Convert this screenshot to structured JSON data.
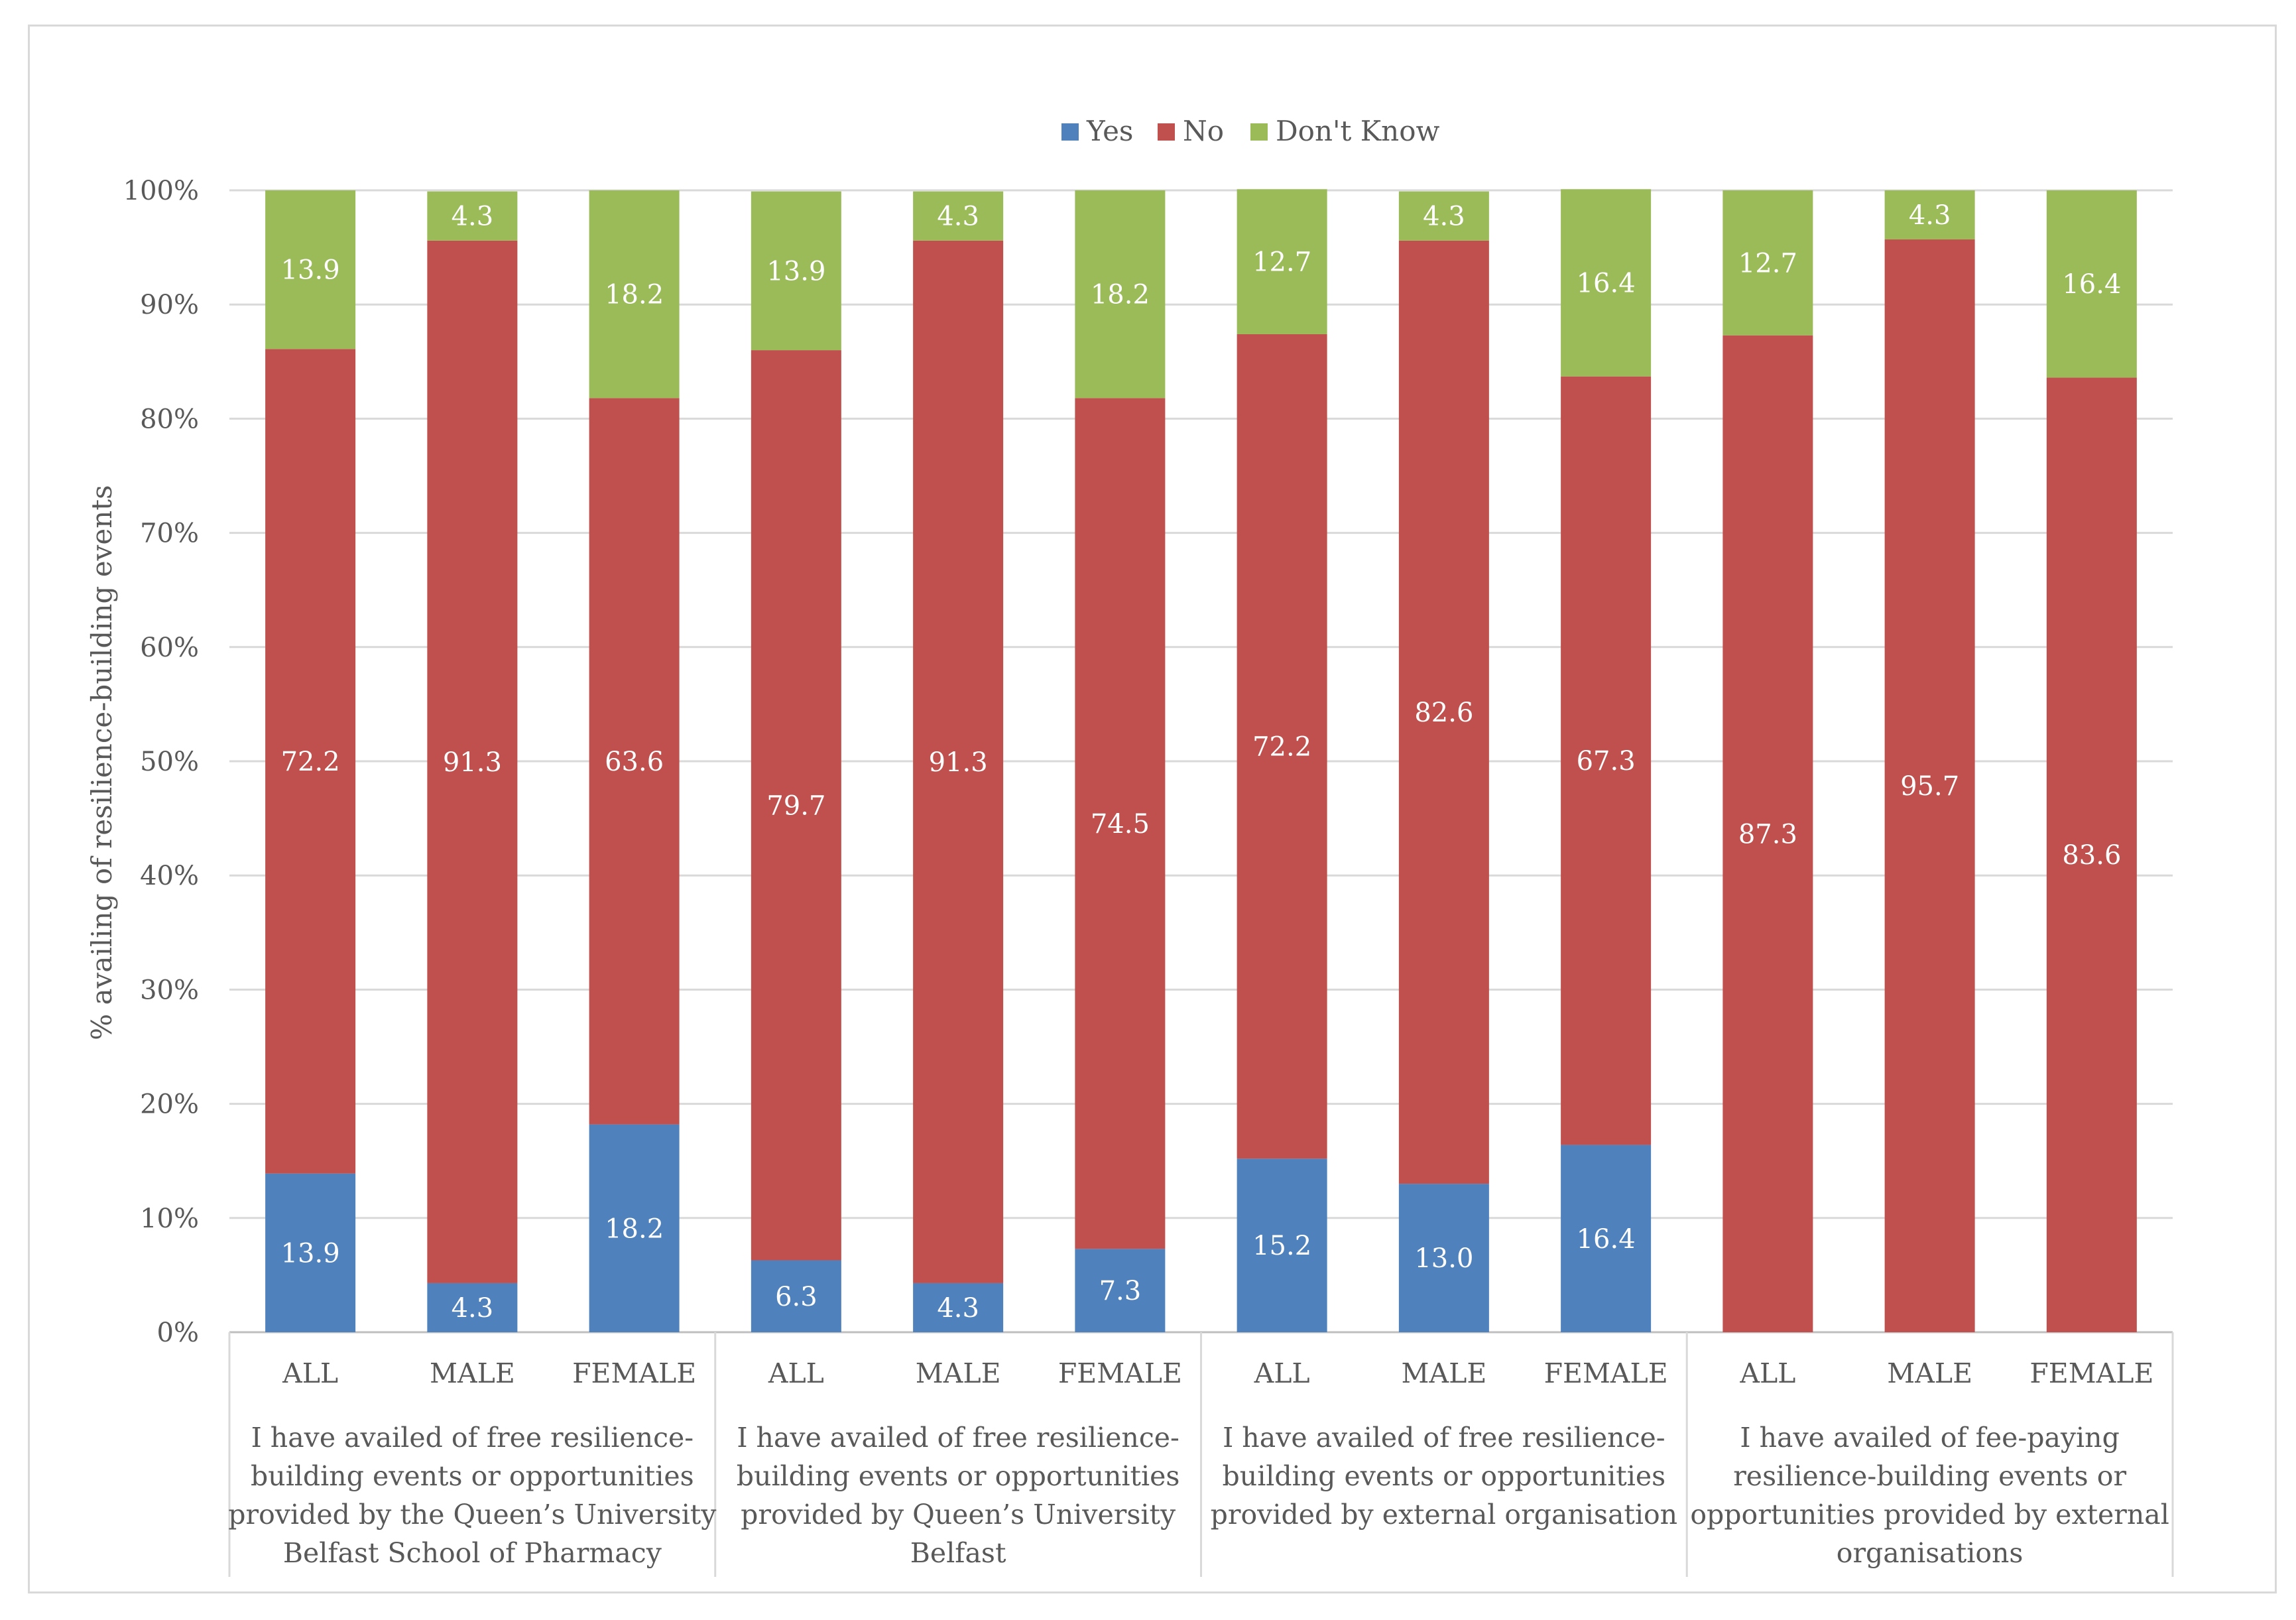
{
  "chart_data": {
    "type": "bar",
    "stacked": true,
    "ylabel": "% availing of  resilience-building events",
    "ylim": [
      0,
      100
    ],
    "y_ticks": [
      "0%",
      "10%",
      "20%",
      "30%",
      "40%",
      "50%",
      "60%",
      "70%",
      "80%",
      "90%",
      "100%"
    ],
    "legend": [
      "Yes",
      "No",
      "Don't Know"
    ],
    "legend_position": "top-center",
    "colors": {
      "Yes": "#4f81bd",
      "No": "#c0504d",
      "Don't Know": "#9bbb59"
    },
    "groups": [
      "I have availed of free resilience-building events or opportunities provided by the Queen's University Belfast School of Pharmacy",
      "I have availed of free resilience-building events or opportunities provided by Queen's University Belfast",
      "I have availed of free resilience-building events or opportunities provided by external organisation",
      "I have availed of fee-paying resilience-building events or opportunities provided by external organisations"
    ],
    "group_label_lines": [
      [
        "I have availed of free resilience-",
        "building events or opportunities",
        "provided by the Queen’s University",
        "Belfast School of Pharmacy"
      ],
      [
        "I have availed of free resilience-",
        "building events or opportunities",
        "provided by Queen’s University",
        "Belfast"
      ],
      [
        "I have availed of free resilience-",
        "building events or opportunities",
        "provided by external organisation"
      ],
      [
        "I have availed of fee-paying",
        "resilience-building events or",
        "opportunities provided by external",
        "organisations"
      ]
    ],
    "categories": [
      "ALL",
      "MALE",
      "FEMALE",
      "ALL",
      "MALE",
      "FEMALE",
      "ALL",
      "MALE",
      "FEMALE",
      "ALL",
      "MALE",
      "FEMALE"
    ],
    "series": [
      {
        "name": "Yes",
        "values": [
          13.9,
          4.3,
          18.2,
          6.3,
          4.3,
          7.3,
          15.2,
          13.0,
          16.4,
          0,
          0,
          0
        ],
        "labels": [
          "13.9",
          "4.3",
          "18.2",
          "6.3",
          "4.3",
          "7.3",
          "15.2",
          "13.0",
          "16.4",
          "",
          "",
          ""
        ]
      },
      {
        "name": "No",
        "values": [
          72.2,
          91.3,
          63.6,
          79.7,
          91.3,
          74.5,
          72.2,
          82.6,
          67.3,
          87.3,
          95.7,
          83.6
        ],
        "labels": [
          "72.2",
          "91.3",
          "63.6",
          "79.7",
          "91.3",
          "74.5",
          "72.2",
          "82.6",
          "67.3",
          "87.3",
          "95.7",
          "83.6"
        ]
      },
      {
        "name": "Don't Know",
        "values": [
          13.9,
          4.3,
          18.2,
          13.9,
          4.3,
          18.2,
          12.7,
          4.3,
          16.4,
          12.7,
          4.3,
          16.4
        ],
        "labels": [
          "13.9",
          "4.3",
          "18.2",
          "13.9",
          "4.3",
          "18.2",
          "12.7",
          "4.3",
          "16.4",
          "12.7",
          "4.3",
          "16.4"
        ]
      }
    ]
  }
}
